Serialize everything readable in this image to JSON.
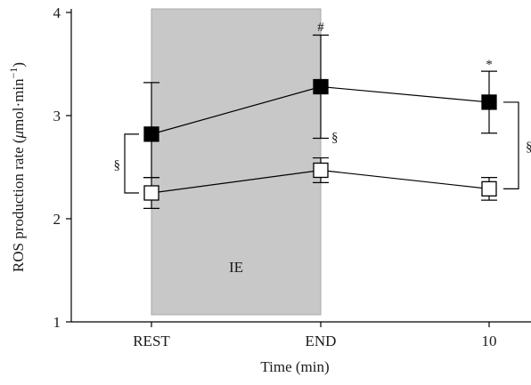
{
  "chart_data": {
    "type": "line",
    "title": "",
    "xlabel": "Time (min)",
    "ylabel_parts": {
      "prefix": "ROS production rate (",
      "mu": "μ",
      "unit": "mol·min",
      "exp": "−1",
      "suffix": ")"
    },
    "categories": [
      "REST",
      "END",
      "10"
    ],
    "y_ticks": [
      "1",
      "2",
      "3",
      "4"
    ],
    "ylim": [
      1,
      4
    ],
    "grid": false,
    "shaded_region": {
      "label": "IE",
      "from_category": 0,
      "to_category": 1,
      "color": "#c8c8c8"
    },
    "series": [
      {
        "marker": "filled-square",
        "color": "#000000",
        "values": [
          2.82,
          3.28,
          3.13
        ],
        "error_up": [
          0.5,
          0.5,
          0.3
        ],
        "error_down": [
          0.42,
          0.5,
          0.3
        ]
      },
      {
        "marker": "open-square",
        "color": "#000000",
        "values": [
          2.25,
          2.47,
          2.29
        ],
        "error_up": [
          0.15,
          0.12,
          0.11
        ],
        "error_down": [
          0.15,
          0.12,
          0.11
        ]
      }
    ],
    "annotations": [
      {
        "text": "#",
        "category": 1,
        "y": 3.87
      },
      {
        "text": "*",
        "category": 2,
        "y": 3.51
      },
      {
        "text": "§",
        "category": 1,
        "y": 2.8
      }
    ],
    "brackets": [
      {
        "category": 0,
        "from": 2.25,
        "to": 2.82,
        "side": "left",
        "text": "§"
      },
      {
        "category": 2,
        "from": 2.29,
        "to": 3.13,
        "side": "right",
        "text": "§"
      }
    ]
  }
}
